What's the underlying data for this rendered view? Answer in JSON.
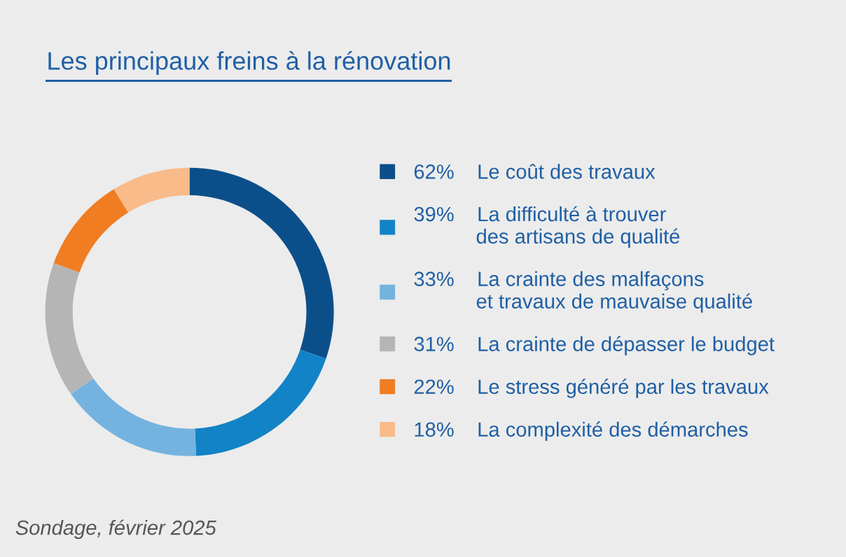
{
  "chart_data": {
    "type": "donut",
    "title": "Les principaux freins à la rénovation",
    "categories": [
      "Le coût des travaux",
      "La difficulté à trouver\ndes artisans de qualité",
      "La crainte des malfaçons\net travaux de mauvaise qualité",
      "La crainte de dépasser le budget",
      "Le stress généré par les travaux",
      "La complexité des démarches"
    ],
    "values": [
      62,
      39,
      33,
      31,
      22,
      18
    ],
    "value_labels": [
      "62%",
      "39%",
      "33%",
      "31%",
      "22%",
      "18%"
    ],
    "colors": [
      "#0b4f8a",
      "#1283c6",
      "#74b3e0",
      "#b5b5b5",
      "#f07d22",
      "#f9bb8a"
    ],
    "legend": "right",
    "annotations": [
      "Sondage, février 2025"
    ]
  }
}
